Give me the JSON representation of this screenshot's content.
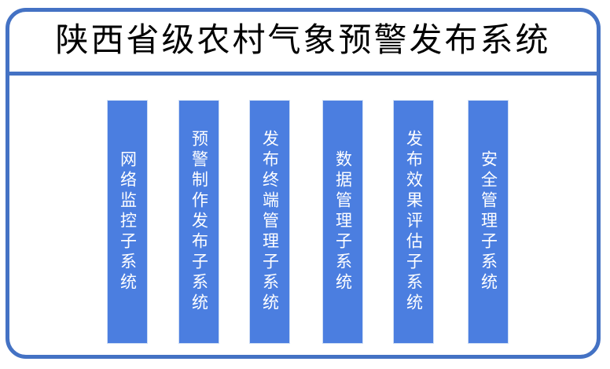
{
  "title": "陕西省级农村气象预警发布系统",
  "colors": {
    "border": "#4472C4",
    "bar_fill": "#4B7EE0",
    "bar_text": "#FFFFFF",
    "title_text": "#000000"
  },
  "subsystems": [
    {
      "label": "网络监控子系统"
    },
    {
      "label": "预警制作发布子系统"
    },
    {
      "label": "发布终端管理子系统"
    },
    {
      "label": "数据管理子系统"
    },
    {
      "label": "发布效果评估子系统"
    },
    {
      "label": "安全管理子系统"
    }
  ]
}
